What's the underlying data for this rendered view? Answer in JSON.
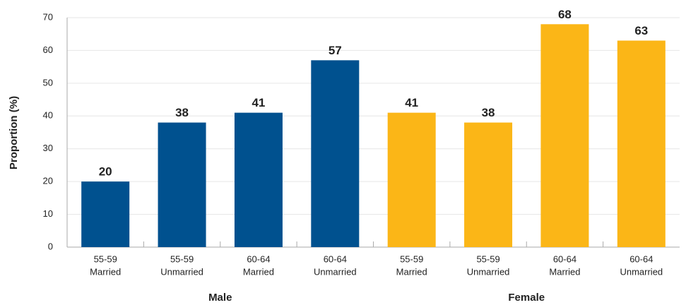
{
  "chart_data": {
    "type": "bar",
    "y_label": "Proportion (%)",
    "categories": [
      [
        "55-59",
        "Married"
      ],
      [
        "55-59",
        "Unmarried"
      ],
      [
        "60-64",
        "Married"
      ],
      [
        "60-64",
        "Unmarried"
      ],
      [
        "55-59",
        "Married"
      ],
      [
        "55-59",
        "Unmarried"
      ],
      [
        "60-64",
        "Married"
      ],
      [
        "60-64",
        "Unmarried"
      ]
    ],
    "values": [
      20,
      38,
      41,
      57,
      41,
      38,
      68,
      63
    ],
    "groups": [
      {
        "name": "Male",
        "color": "#00518f"
      },
      {
        "name": "Female",
        "color": "#fbb617"
      }
    ],
    "ylim": [
      0,
      70
    ],
    "yticks": [
      0,
      10,
      20,
      30,
      40,
      50,
      60,
      70
    ],
    "grid": true
  }
}
